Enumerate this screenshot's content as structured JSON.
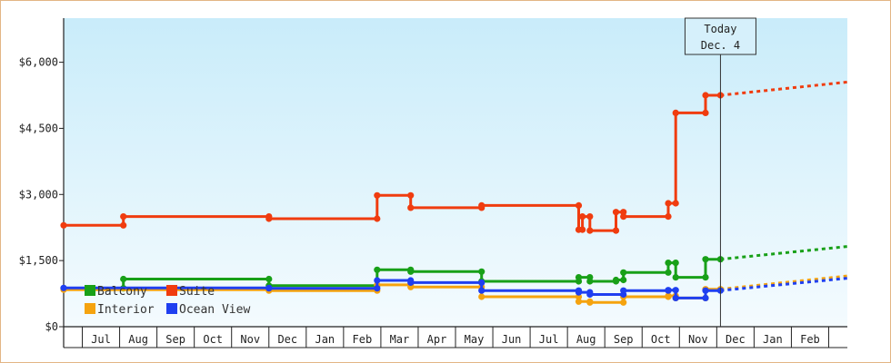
{
  "chart_data": {
    "type": "line",
    "x_unit": "month index (0 = late Jun of first year)",
    "y_ticks": [
      "$6,000",
      "$4,500",
      "$3,000",
      "$1,500",
      "$0"
    ],
    "y_tick_values": [
      6000,
      4500,
      3000,
      1500,
      0
    ],
    "ylim": [
      0,
      7000
    ],
    "x_ticks": [
      "Jul",
      "Aug",
      "Sep",
      "Oct",
      "Nov",
      "Dec",
      "Jan",
      "Feb",
      "Mar",
      "Apr",
      "May",
      "Jun",
      "Jul",
      "Aug",
      "Sep",
      "Oct",
      "Nov",
      "Dec",
      "Jan",
      "Feb"
    ],
    "today": {
      "line1": "Today",
      "line2": "Dec. 4",
      "x": 17.6
    },
    "xlim": [
      0,
      21
    ],
    "series": [
      {
        "name": "Suite",
        "color": "#f03c0f",
        "points": [
          [
            0,
            2300
          ],
          [
            1.6,
            2300
          ],
          [
            1.6,
            2500
          ],
          [
            5.5,
            2500
          ],
          [
            5.5,
            2450
          ],
          [
            8.4,
            2450
          ],
          [
            8.4,
            2980
          ],
          [
            9.3,
            2980
          ],
          [
            9.3,
            2700
          ],
          [
            11.2,
            2700
          ],
          [
            11.2,
            2750
          ],
          [
            13.8,
            2750
          ],
          [
            13.8,
            2200
          ],
          [
            13.9,
            2200
          ],
          [
            13.9,
            2500
          ],
          [
            14.1,
            2500
          ],
          [
            14.1,
            2180
          ],
          [
            14.8,
            2180
          ],
          [
            14.8,
            2600
          ],
          [
            15.0,
            2600
          ],
          [
            15.0,
            2500
          ],
          [
            16.2,
            2500
          ],
          [
            16.2,
            2800
          ],
          [
            16.4,
            2800
          ],
          [
            16.4,
            4850
          ],
          [
            17.2,
            4850
          ],
          [
            17.2,
            5250
          ],
          [
            17.6,
            5250
          ]
        ],
        "projection": [
          [
            17.6,
            5250
          ],
          [
            21,
            5550
          ]
        ]
      },
      {
        "name": "Balcony",
        "color": "#18a018",
        "points": [
          [
            0,
            870
          ],
          [
            1.6,
            870
          ],
          [
            1.6,
            1080
          ],
          [
            5.5,
            1080
          ],
          [
            5.5,
            930
          ],
          [
            8.4,
            930
          ],
          [
            8.4,
            1290
          ],
          [
            9.3,
            1290
          ],
          [
            9.3,
            1250
          ],
          [
            11.2,
            1250
          ],
          [
            11.2,
            1030
          ],
          [
            13.8,
            1030
          ],
          [
            13.8,
            1120
          ],
          [
            14.1,
            1120
          ],
          [
            14.1,
            1030
          ],
          [
            14.8,
            1030
          ],
          [
            14.8,
            1060
          ],
          [
            15.0,
            1060
          ],
          [
            15.0,
            1230
          ],
          [
            16.2,
            1230
          ],
          [
            16.2,
            1450
          ],
          [
            16.4,
            1450
          ],
          [
            16.4,
            1120
          ],
          [
            17.2,
            1120
          ],
          [
            17.2,
            1530
          ],
          [
            17.6,
            1530
          ]
        ],
        "projection": [
          [
            17.6,
            1530
          ],
          [
            21,
            1820
          ]
        ]
      },
      {
        "name": "Interior",
        "color": "#f5a30f",
        "points": [
          [
            0,
            840
          ],
          [
            5.5,
            840
          ],
          [
            5.5,
            820
          ],
          [
            8.4,
            820
          ],
          [
            8.4,
            950
          ],
          [
            9.3,
            950
          ],
          [
            9.3,
            900
          ],
          [
            11.2,
            900
          ],
          [
            11.2,
            680
          ],
          [
            13.8,
            680
          ],
          [
            13.8,
            570
          ],
          [
            14.1,
            570
          ],
          [
            14.1,
            550
          ],
          [
            15.0,
            550
          ],
          [
            15.0,
            680
          ],
          [
            16.2,
            680
          ],
          [
            16.2,
            700
          ],
          [
            16.4,
            700
          ],
          [
            16.4,
            650
          ],
          [
            17.2,
            650
          ],
          [
            17.2,
            850
          ],
          [
            17.6,
            850
          ]
        ],
        "projection": [
          [
            17.6,
            850
          ],
          [
            21,
            1150
          ]
        ]
      },
      {
        "name": "Ocean View",
        "color": "#1f3ff0",
        "points": [
          [
            0,
            880
          ],
          [
            5.5,
            880
          ],
          [
            5.5,
            870
          ],
          [
            8.4,
            870
          ],
          [
            8.4,
            1050
          ],
          [
            9.3,
            1050
          ],
          [
            9.3,
            1000
          ],
          [
            11.2,
            1000
          ],
          [
            11.2,
            820
          ],
          [
            13.8,
            820
          ],
          [
            13.8,
            780
          ],
          [
            14.1,
            780
          ],
          [
            14.1,
            730
          ],
          [
            15.0,
            730
          ],
          [
            15.0,
            820
          ],
          [
            16.2,
            820
          ],
          [
            16.2,
            830
          ],
          [
            16.4,
            830
          ],
          [
            16.4,
            650
          ],
          [
            17.2,
            650
          ],
          [
            17.2,
            820
          ],
          [
            17.6,
            820
          ]
        ],
        "projection": [
          [
            17.6,
            820
          ],
          [
            21,
            1100
          ]
        ]
      }
    ],
    "legend": [
      {
        "name": "Balcony",
        "color": "#18a018"
      },
      {
        "name": "Suite",
        "color": "#f03c0f"
      },
      {
        "name": "Interior",
        "color": "#f5a30f"
      },
      {
        "name": "Ocean View",
        "color": "#1f3ff0"
      }
    ]
  }
}
